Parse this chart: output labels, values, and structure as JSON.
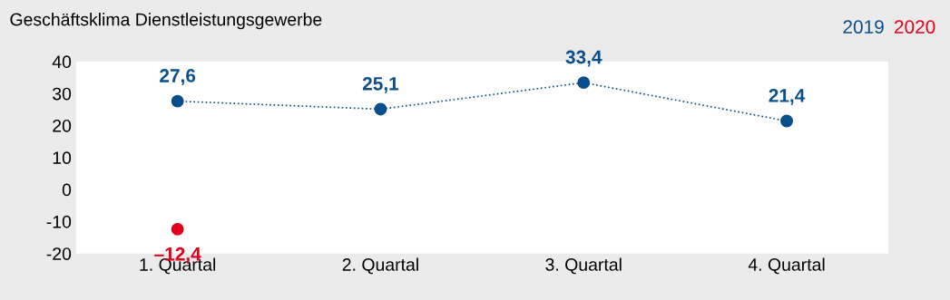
{
  "chart_data": {
    "type": "line",
    "title": "Geschäftsklima Dienstleistungsgewerbe",
    "categories": [
      "1. Quartal",
      "2. Quartal",
      "3. Quartal",
      "4. Quartal"
    ],
    "series": [
      {
        "name": "2019",
        "color": "#0a4f8c",
        "values": [
          27.6,
          25.1,
          33.4,
          21.4
        ],
        "value_labels": [
          "27,6",
          "25,1",
          "33,4",
          "21,4"
        ],
        "line_style": "dotted",
        "marker": "circle"
      },
      {
        "name": "2020",
        "type": "scatter",
        "color": "#e2001a",
        "values": [
          -12.4,
          null,
          null,
          null
        ],
        "value_labels": [
          "–12,4",
          null,
          null,
          null
        ],
        "marker": "circle"
      }
    ],
    "ylim": [
      -20,
      40
    ],
    "yticks": [
      -20,
      -10,
      0,
      10,
      20,
      30,
      40
    ],
    "grid": false,
    "legend": "top right"
  }
}
